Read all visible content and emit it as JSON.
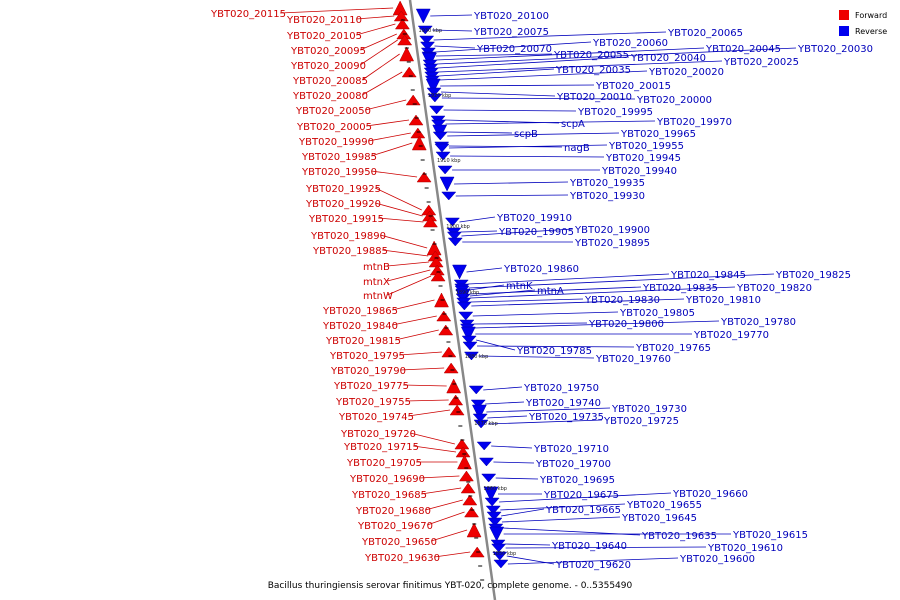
{
  "caption": "Bacillus thuringiensis serovar finitimus YBT-020, complete genome. - 0..5355490",
  "legend": [
    {
      "label": "Forward",
      "color": "#ee0000"
    },
    {
      "label": "Reverse",
      "color": "#0000ee"
    }
  ],
  "colors": {
    "forward": "#ee0000",
    "reverse": "#0000ee",
    "backbone": "#888888",
    "forward_line": "#cc0000",
    "reverse_line": "#0000bb"
  },
  "kbp_marks": [
    "1930 kbp",
    "1920 kbp",
    "1910 kbp",
    "1900 kbp",
    "1890 kbp",
    "1880 kbp",
    "1870 kbp",
    "1860 kbp",
    "1850 kbp"
  ],
  "forward_genes": [
    "YBT020_20115",
    "YBT020_20110",
    "YBT020_20105",
    "YBT020_20095",
    "YBT020_20090",
    "YBT020_20085",
    "YBT020_20080",
    "YBT020_20050",
    "YBT020_20005",
    "YBT020_19990",
    "YBT020_19985",
    "YBT020_19950",
    "YBT020_19925",
    "YBT020_19920",
    "YBT020_19915",
    "YBT020_19890",
    "YBT020_19885",
    "mtnB",
    "mtnX",
    "mtnW",
    "YBT020_19865",
    "YBT020_19840",
    "YBT020_19815",
    "YBT020_19795",
    "YBT020_19790",
    "YBT020_19775",
    "YBT020_19755",
    "YBT020_19745",
    "YBT020_19720",
    "YBT020_19715",
    "YBT020_19705",
    "YBT020_19690",
    "YBT020_19685",
    "YBT020_19680",
    "YBT020_19670",
    "YBT020_19650",
    "YBT020_19630"
  ],
  "reverse_genes": [
    "YBT020_20100",
    "YBT020_20075",
    "YBT020_20065",
    "YBT020_20070",
    "YBT020_20060",
    "YBT020_20055",
    "YBT020_20045",
    "YBT020_20030",
    "YBT020_20040",
    "YBT020_20025",
    "YBT020_20035",
    "YBT020_20020",
    "YBT020_20015",
    "YBT020_20010",
    "YBT020_20000",
    "YBT020_19995",
    "scpA",
    "YBT020_19970",
    "scpB",
    "YBT020_19965",
    "nagB",
    "YBT020_19955",
    "YBT020_19945",
    "YBT020_19940",
    "YBT020_19935",
    "YBT020_19930",
    "YBT020_19910",
    "YBT020_19905",
    "YBT020_19900",
    "YBT020_19895",
    "YBT020_19860",
    "YBT020_19845",
    "YBT020_19825",
    "mtnK",
    "YBT020_19835",
    "YBT020_19820",
    "mtnA",
    "YBT020_19830",
    "YBT020_19810",
    "YBT020_19805",
    "YBT020_19800",
    "YBT020_19780",
    "YBT020_19770",
    "YBT020_19785",
    "YBT020_19765",
    "YBT020_19760",
    "YBT020_19750",
    "YBT020_19740",
    "YBT020_19730",
    "YBT020_19735",
    "YBT020_19725",
    "YBT020_19710",
    "YBT020_19700",
    "YBT020_19695",
    "YBT020_19675",
    "YBT020_19660",
    "YBT020_19655",
    "YBT020_19665",
    "YBT020_19645",
    "YBT020_19635",
    "YBT020_19615",
    "YBT020_19640",
    "YBT020_19610",
    "YBT020_19620",
    "YBT020_19600"
  ]
}
